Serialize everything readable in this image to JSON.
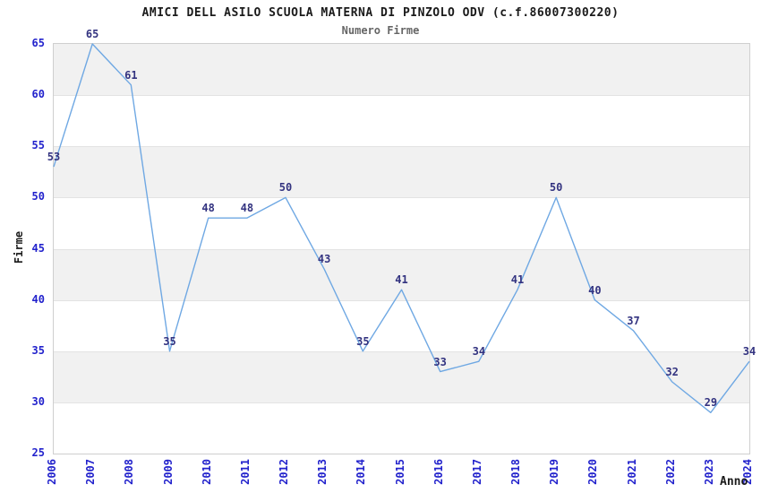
{
  "title": "AMICI DELL ASILO SCUOLA MATERNA DI PINZOLO ODV (c.f.86007300220)",
  "subtitle": "Numero Firme",
  "chart_data": {
    "type": "line",
    "title": "Numero Firme",
    "x": [
      "2006",
      "2007",
      "2008",
      "2009",
      "2010",
      "2011",
      "2012",
      "2013",
      "2014",
      "2015",
      "2016",
      "2017",
      "2018",
      "2019",
      "2020",
      "2021",
      "2022",
      "2023",
      "2024"
    ],
    "values": [
      53,
      65,
      61,
      35,
      48,
      48,
      50,
      43,
      35,
      41,
      33,
      34,
      41,
      50,
      40,
      37,
      32,
      29,
      34
    ],
    "point_labels": [
      "53",
      "65",
      "61",
      "35",
      "48",
      "48",
      "50",
      "43",
      "35",
      "41",
      "33",
      "34",
      "41",
      "50",
      "40",
      "37",
      "32",
      "29",
      "34"
    ],
    "xlabel": "Anno",
    "ylabel": "Firme",
    "ylim": [
      25,
      65
    ],
    "yticks": [
      25,
      30,
      35,
      40,
      45,
      50,
      55,
      60,
      65
    ],
    "grid": "horizontal alternating bands every 5 units",
    "gray_bands": [
      [
        60,
        65
      ],
      [
        50,
        55
      ],
      [
        40,
        45
      ],
      [
        30,
        35
      ]
    ],
    "legend": "none"
  },
  "colors": {
    "title": "#1a1a1a",
    "subtitle": "#666666",
    "tick_label": "#2222cc",
    "data_label": "#333380",
    "line": "#6FA8E3",
    "band": "#f1f1f1",
    "gridline": "#e3e3e3",
    "axis_label": "#1a1a1a",
    "plot_border": "#cfcfcf",
    "background": "#ffffff"
  }
}
